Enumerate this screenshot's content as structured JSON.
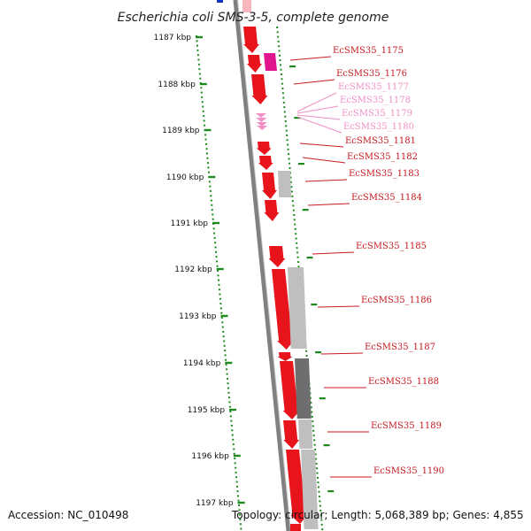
{
  "title": "Escherichia coli SMS-3-5, complete genome",
  "footer": {
    "accession": "Accession: NC_010498",
    "summary": "Topology: circular; Length: 5,068,389 bp; Genes: 4,855"
  },
  "colors": {
    "gene_red": "#e8141b",
    "gene_magenta": "#e0168f",
    "gene_pink": "#f58fc6",
    "label_red": "#c8191f",
    "label_pink": "#f08fc4",
    "ruler_green": "#1e8a1e",
    "backbone": "#808080",
    "gray_light": "#bfbfbf",
    "gray_dark": "#6e6e6e"
  },
  "ruler": [
    "1187 kbp",
    "1188 kbp",
    "1189 kbp",
    "1190 kbp",
    "1191 kbp",
    "1192 kbp",
    "1193 kbp",
    "1194 kbp",
    "1195 kbp",
    "1196 kbp",
    "1197 kbp"
  ],
  "genes": [
    {
      "label": "EcSMS35_1175",
      "color": "red"
    },
    {
      "label": "EcSMS35_1176",
      "color": "red"
    },
    {
      "label": "EcSMS35_1177",
      "color": "pink"
    },
    {
      "label": "EcSMS35_1178",
      "color": "pink"
    },
    {
      "label": "EcSMS35_1179",
      "color": "pink"
    },
    {
      "label": "EcSMS35_1180",
      "color": "pink"
    },
    {
      "label": "EcSMS35_1181",
      "color": "red"
    },
    {
      "label": "EcSMS35_1182",
      "color": "red"
    },
    {
      "label": "EcSMS35_1183",
      "color": "red"
    },
    {
      "label": "EcSMS35_1184",
      "color": "red"
    },
    {
      "label": "EcSMS35_1185",
      "color": "red"
    },
    {
      "label": "EcSMS35_1186",
      "color": "red"
    },
    {
      "label": "EcSMS35_1187",
      "color": "red"
    },
    {
      "label": "EcSMS35_1188",
      "color": "red"
    },
    {
      "label": "EcSMS35_1189",
      "color": "red"
    },
    {
      "label": "EcSMS35_1190",
      "color": "red"
    }
  ]
}
